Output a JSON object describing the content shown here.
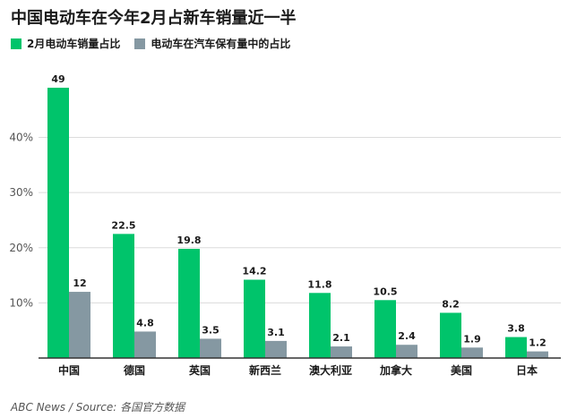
{
  "chart_data": {
    "type": "bar",
    "title": "中国电动车在今年2月占新车销量近一半",
    "categories": [
      "中国",
      "德国",
      "英国",
      "新西兰",
      "澳大利亚",
      "加拿大",
      "美国",
      "日本"
    ],
    "series": [
      {
        "name": "2月电动车销量占比",
        "values": [
          49,
          22.5,
          19.8,
          14.2,
          11.8,
          10.5,
          8.2,
          3.8
        ],
        "color": "#00c46b"
      },
      {
        "name": "电动车在汽车保有量中的占比",
        "values": [
          12,
          4.8,
          3.5,
          3.1,
          2.1,
          2.4,
          1.9,
          1.2
        ],
        "color": "#8598a2"
      }
    ],
    "ytick_values": [
      10,
      20,
      30,
      40
    ],
    "ytick_labels": [
      "10%",
      "20%",
      "30%",
      "40%"
    ],
    "ylim": [
      0,
      52
    ],
    "xlabel": "",
    "ylabel": "",
    "grid": true,
    "legend_position": "top-left"
  },
  "source": "ABC News / Source: 各国官方数据"
}
